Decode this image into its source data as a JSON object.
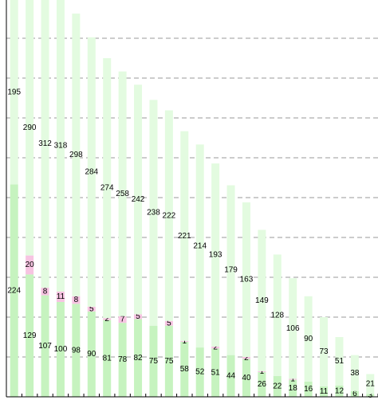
{
  "chart_data": {
    "type": "stacked-bar",
    "series": [
      {
        "color": "#c6f3bf",
        "values": [
          224,
          129,
          107,
          100,
          98,
          90,
          81,
          78,
          82,
          75,
          75,
          58,
          52,
          51,
          44,
          40,
          26,
          22,
          18,
          16,
          11,
          12,
          6,
          3
        ]
      },
      {
        "color": "#f7c4e2",
        "values": [
          null,
          20,
          8,
          11,
          8,
          5,
          2,
          7,
          5,
          null,
          5,
          1,
          0,
          2,
          0,
          2,
          1,
          0,
          1,
          0,
          0,
          0,
          0,
          0
        ]
      },
      {
        "color": "#e3fbe0",
        "values": [
          195,
          290,
          312,
          318,
          298,
          284,
          274,
          258,
          242,
          238,
          222,
          221,
          214,
          193,
          179,
          163,
          149,
          128,
          106,
          90,
          73,
          51,
          38,
          21
        ]
      }
    ],
    "ylim": [
      0,
      420
    ],
    "yticks": [
      0,
      42,
      84,
      126,
      168,
      210,
      252,
      294,
      336,
      378,
      420
    ],
    "grid": true
  }
}
